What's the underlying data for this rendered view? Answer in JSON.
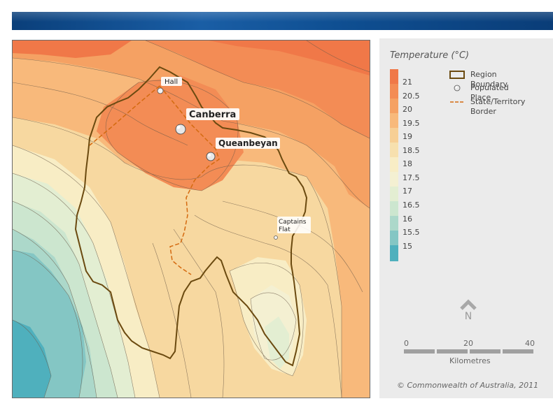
{
  "map": {
    "places": [
      {
        "name": "Hall",
        "kind": "small"
      },
      {
        "name": "Canberra",
        "kind": "large"
      },
      {
        "name": "Queanbeyan",
        "kind": "large"
      },
      {
        "name": "Captains",
        "kind": "small"
      },
      {
        "name": "Flat",
        "kind": "small"
      }
    ]
  },
  "legend": {
    "title": "Temperature (°C)",
    "scale": [
      "21",
      "20.5",
      "20",
      "19.5",
      "19",
      "18.5",
      "18",
      "17.5",
      "17",
      "16.5",
      "16",
      "15.5",
      "15"
    ],
    "colors": {
      "21": "#f07848",
      "20.5": "#f38c55",
      "20": "#f5a163",
      "19.5": "#f8b97b",
      "19": "#f7cf95",
      "18.5": "#f7e0ae",
      "18": "#f8edc5",
      "17.5": "#f4f0d2",
      "17": "#e3eed2",
      "16.5": "#cce6cf",
      "16": "#acd8ca",
      "15.5": "#84c6c4",
      "15": "#4fb0bd"
    },
    "symbols": {
      "region_boundary": "Region Boundary",
      "populated_place": "Populated Place",
      "border_line1": "State/Territory",
      "border_line2": "Border"
    },
    "north_letter": "N",
    "scale_ticks": [
      "0",
      "20",
      "40"
    ],
    "scale_unit": "Kilometres",
    "copyright": "© Commonwealth of Australia, 2011"
  }
}
